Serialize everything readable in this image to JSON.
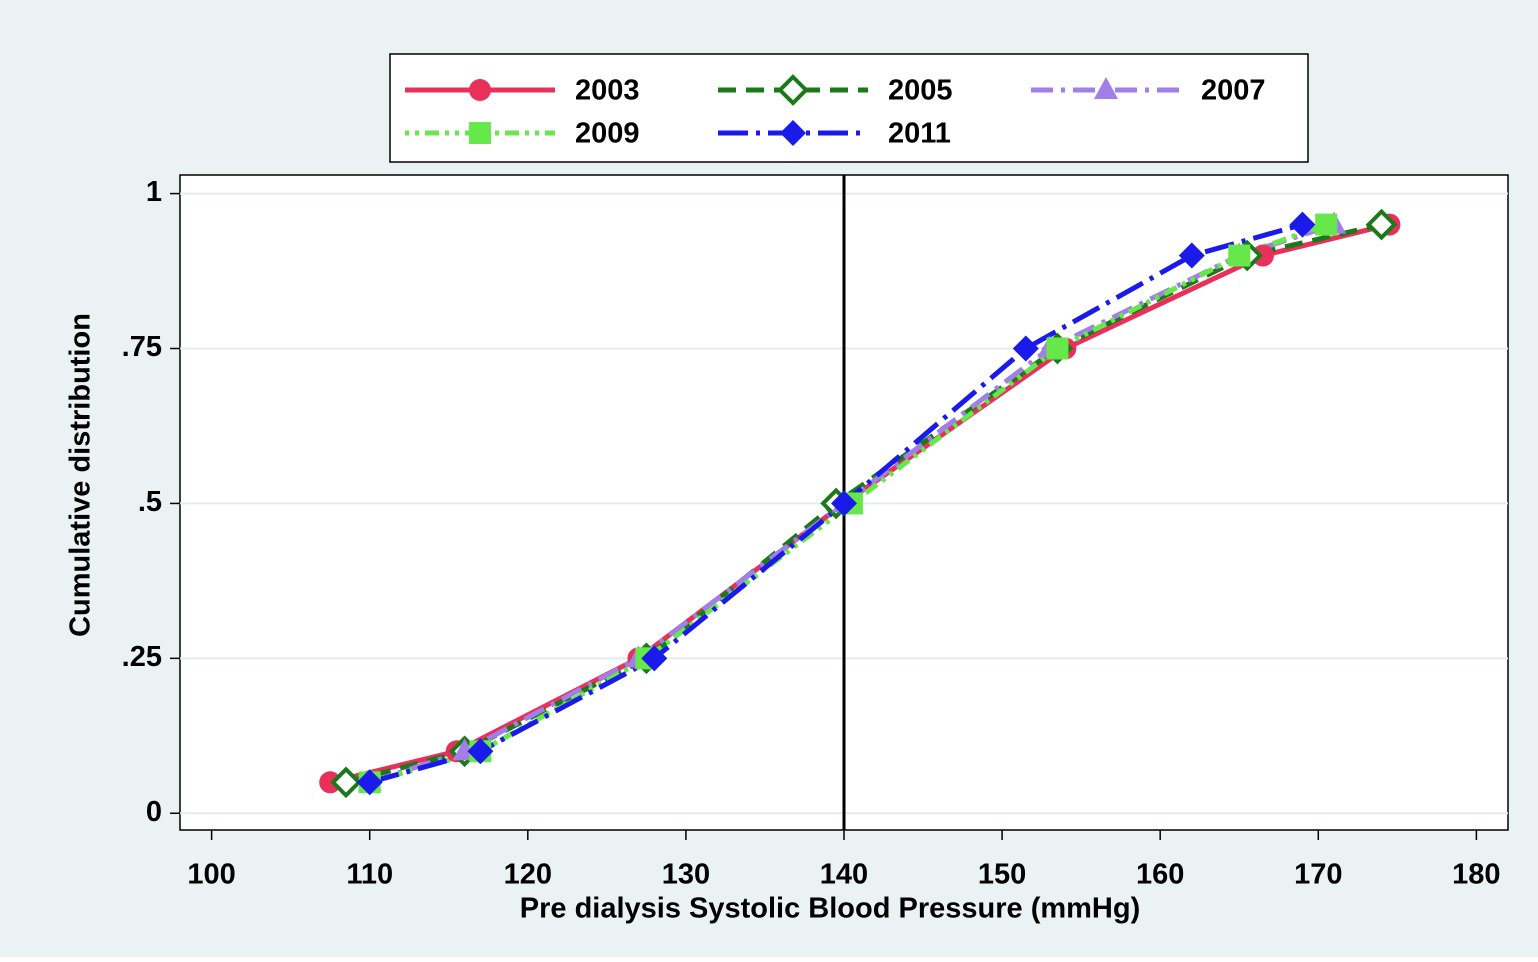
{
  "chart_data": {
    "type": "line",
    "xlabel": "Pre dialysis Systolic Blood Pressure (mmHg)",
    "ylabel": "Cumulative distribution",
    "xlim": [
      98,
      182
    ],
    "ylim": [
      -0.027,
      1.03
    ],
    "xticks": [
      100,
      110,
      120,
      130,
      140,
      150,
      160,
      170,
      180
    ],
    "yticks": [
      0,
      {
        "value": 0.25,
        "label": ".25"
      },
      {
        "value": 0.5,
        "label": ".5"
      },
      {
        "value": 0.75,
        "label": ".75"
      },
      1
    ],
    "grid": true,
    "vline": 140,
    "legend": "top",
    "series": [
      {
        "name": "2003",
        "color": "#e8305a",
        "marker": "circle",
        "dash": "solid",
        "x": [
          107.5,
          115.5,
          127,
          140,
          154,
          166.5,
          174.5
        ],
        "values": [
          0.05,
          0.1,
          0.25,
          0.5,
          0.75,
          0.9,
          0.95
        ]
      },
      {
        "name": "2005",
        "color": "#1a7a1a",
        "marker": "diamond-hollow",
        "dash": "dash",
        "x": [
          108.5,
          116,
          127.5,
          139.5,
          153.5,
          165.5,
          174
        ],
        "values": [
          0.05,
          0.1,
          0.25,
          0.5,
          0.75,
          0.9,
          0.95
        ]
      },
      {
        "name": "2007",
        "color": "#a27ee8",
        "marker": "triangle",
        "dash": "dashdot",
        "x": [
          110,
          116,
          127,
          140,
          153,
          165,
          171
        ],
        "values": [
          0.05,
          0.1,
          0.25,
          0.5,
          0.75,
          0.9,
          0.95
        ]
      },
      {
        "name": "2009",
        "color": "#66e84a",
        "marker": "square",
        "dash": "dot",
        "x": [
          110,
          117,
          127.5,
          140.5,
          153.5,
          165,
          170.5
        ],
        "values": [
          0.05,
          0.1,
          0.25,
          0.5,
          0.75,
          0.9,
          0.95
        ]
      },
      {
        "name": "2011",
        "color": "#1a1aeb",
        "marker": "diamond",
        "dash": "longdashdot",
        "x": [
          110,
          117,
          128,
          140,
          151.5,
          162,
          169
        ],
        "values": [
          0.05,
          0.1,
          0.25,
          0.5,
          0.75,
          0.9,
          0.95
        ]
      }
    ]
  }
}
